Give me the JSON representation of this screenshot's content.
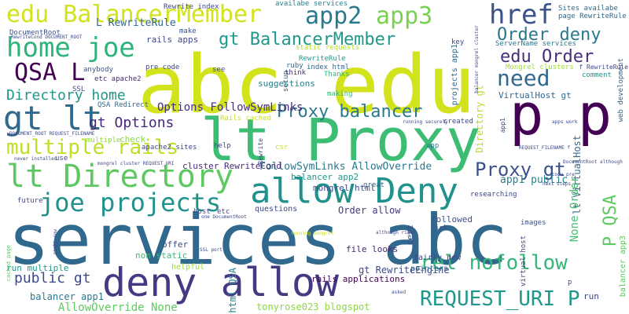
{
  "words": [
    {
      "text": "services abc",
      "color": "#31688e"
    },
    {
      "text": "abc edu",
      "color": "#d2e21b"
    },
    {
      "text": "lt Proxy",
      "color": "#3dbc74"
    },
    {
      "text": "p p",
      "color": "#440154"
    },
    {
      "text": "deny allow",
      "color": "#443983"
    },
    {
      "text": "allow Deny",
      "color": "#21918c"
    },
    {
      "text": "lt Directory",
      "color": "#5ec962"
    },
    {
      "text": "edu BalancerMember",
      "color": "#d2e21b"
    },
    {
      "text": "app2",
      "color": "#2a788e"
    },
    {
      "text": "app3",
      "color": "#7ad151"
    },
    {
      "text": "href",
      "color": "#3b528b"
    },
    {
      "text": "home joe",
      "color": "#2fb47c"
    },
    {
      "text": "QSA L",
      "color": "#440154"
    },
    {
      "text": "gt lt",
      "color": "#31688e"
    },
    {
      "text": "joe projects",
      "color": "#21918c"
    },
    {
      "text": "multiple rails",
      "color": "#bddf26"
    },
    {
      "text": "gt BalancerMember",
      "color": "#1f988b"
    },
    {
      "text": "Order deny",
      "color": "#2a788e"
    },
    {
      "text": "edu Order",
      "color": "#472d7b"
    },
    {
      "text": "need",
      "color": "#31688e"
    },
    {
      "text": "Proxy balancer",
      "color": "#2a788e"
    },
    {
      "text": "Proxy gt",
      "color": "#3b528b"
    },
    {
      "text": "rel nofollow",
      "color": "#35b779"
    },
    {
      "text": "REQUEST_URI P",
      "color": "#1f988b"
    },
    {
      "text": "P QSA",
      "color": "#5ec962"
    },
    {
      "text": "Directory home",
      "color": "#1f988b"
    },
    {
      "text": "gt Options",
      "color": "#482878"
    },
    {
      "text": "Options FollowSymLinks",
      "color": "#472d7b"
    },
    {
      "text": "public gt",
      "color": "#3e4989"
    },
    {
      "text": "FollowSymLinks AllowOverride",
      "color": "#2a788e"
    },
    {
      "text": "L RewriteRule",
      "color": "#31688e"
    },
    {
      "text": "app1 public",
      "color": "#26828e"
    },
    {
      "text": "Rewrite index",
      "color": "#3e4989"
    },
    {
      "text": "availabe services",
      "color": "#26828e"
    },
    {
      "text": "Sites availabe",
      "color": "#31688e"
    },
    {
      "text": "page RewriteRule",
      "color": "#31688e"
    },
    {
      "text": "DocumentRoot",
      "color": "#3b528b"
    },
    {
      "text": "rails apps",
      "color": "#3e4989"
    },
    {
      "text": "static requests",
      "color": "#b5de2b"
    },
    {
      "text": "ServerName services",
      "color": "#2a788e"
    },
    {
      "text": "Directory gt",
      "color": "#b5de2b"
    },
    {
      "text": "RewriteRule",
      "color": "#1f988b"
    },
    {
      "text": "ruby",
      "color": "#31688e"
    },
    {
      "text": "anybody",
      "color": "#3b528b"
    },
    {
      "text": "Mongrel clusters",
      "color": "#a0da39"
    },
    {
      "text": "VirtualHost gt",
      "color": "#31688e"
    },
    {
      "text": "suggestions",
      "color": "#26828e"
    },
    {
      "text": "index html",
      "color": "#31688e"
    },
    {
      "text": "Thanks",
      "color": "#35b779"
    },
    {
      "text": "think",
      "color": "#472d7b"
    },
    {
      "text": "etc apache2",
      "color": "#482878"
    },
    {
      "text": "pre code",
      "color": "#3e4989"
    },
    {
      "text": "making",
      "color": "#35b779"
    },
    {
      "text": "comment",
      "color": "#21918c"
    },
    {
      "text": "QSA Redirect",
      "color": "#31688e"
    },
    {
      "text": "created",
      "color": "#3e4989"
    },
    {
      "text": "check",
      "color": "#8fd744"
    },
    {
      "text": "multiple",
      "color": "#90d743"
    },
    {
      "text": "apache2 sites",
      "color": "#3e4989"
    },
    {
      "text": "cluster RewriteCond",
      "color": "#482878"
    },
    {
      "text": "balancer app2",
      "color": "#1f988b"
    },
    {
      "text": "mongrel html",
      "color": "#3e4989"
    },
    {
      "text": "Order allow",
      "color": "#443983"
    },
    {
      "text": "lt VirtualHost",
      "color": "#31688e"
    },
    {
      "text": "None Order",
      "color": "#44bf70"
    },
    {
      "text": "AllowOverride None",
      "color": "#5ec962"
    },
    {
      "text": "balancer app1",
      "color": "#2a788e"
    },
    {
      "text": "tonyrose023 blogspot",
      "color": "#8fd744"
    },
    {
      "text": "gt RewriteEngine",
      "color": "#3e4989"
    },
    {
      "text": "rails applications",
      "color": "#440154"
    },
    {
      "text": "html QSA",
      "color": "#26828e"
    },
    {
      "text": "file looks",
      "color": "#482878"
    },
    {
      "text": "fairly new",
      "color": "#3e4989"
    },
    {
      "text": "pointers",
      "color": "#31688e"
    },
    {
      "text": "run multiple",
      "color": "#1f988b"
    },
    {
      "text": "non static",
      "color": "#3dbc74"
    },
    {
      "text": "offer",
      "color": "#3e4989"
    },
    {
      "text": "helpful",
      "color": "#a0da39"
    },
    {
      "text": "questions",
      "color": "#3e4989"
    },
    {
      "text": "future",
      "color": "#3e4989"
    },
    {
      "text": "followed",
      "color": "#3b528b"
    },
    {
      "text": "link",
      "color": "#3b528b"
    },
    {
      "text": "cert",
      "color": "#3e4989"
    },
    {
      "text": "images",
      "color": "#3b528b"
    },
    {
      "text": "great",
      "color": "#31688e"
    },
    {
      "text": "researching",
      "color": "#3e4989"
    },
    {
      "text": "host",
      "color": "#3e4989"
    },
    {
      "text": "etc",
      "color": "#3e4989"
    },
    {
      "text": "help",
      "color": "#3e4989"
    },
    {
      "text": "csr",
      "color": "#c2df23"
    },
    {
      "text": "app",
      "color": "#2a788e"
    },
    {
      "text": "use",
      "color": "#3e4989"
    },
    {
      "text": "see",
      "color": "#3e4989"
    },
    {
      "text": "make",
      "color": "#3b528b"
    },
    {
      "text": "SSL",
      "color": "#3e4989"
    },
    {
      "text": "key",
      "color": "#3e4989"
    },
    {
      "text": "Rails cached",
      "color": "#c8e020"
    },
    {
      "text": "setup",
      "color": "#31688e"
    },
    {
      "text": "projects app1",
      "color": "#31688e"
    },
    {
      "text": "web development",
      "color": "#31688e"
    },
    {
      "text": "virtual host",
      "color": "#3e4989"
    },
    {
      "text": "balancer app3",
      "color": "#5ec962"
    },
    {
      "text": "run",
      "color": "#3e4989"
    },
    {
      "text": "p",
      "color": "#3e4989"
    },
    {
      "text": "DOCUMENT_ROOT REQUEST_FILENAME",
      "color": "#3e4989"
    },
    {
      "text": "RewriteCond DOCUMENT_ROOT",
      "color": "#3e4989"
    },
    {
      "text": "never installed",
      "color": "#3e4989"
    },
    {
      "text": "mongrel cluster REQUEST_URI",
      "color": "#3e4989"
    },
    {
      "text": "cached page",
      "color": "#5ec962"
    },
    {
      "text": "right now",
      "color": "#3e4989"
    },
    {
      "text": "one DocumentRoot",
      "color": "#3e4989"
    },
    {
      "text": "SSL port",
      "color": "#3e4989"
    },
    {
      "text": "REQUEST_FILENAME f",
      "color": "#3e4989"
    },
    {
      "text": "code pre",
      "color": "#3e4989"
    },
    {
      "text": "next steps",
      "color": "#3e4989"
    },
    {
      "text": "DocumentRoot although",
      "color": "#3e4989"
    },
    {
      "text": "running mongrel",
      "color": "#c8e020"
    },
    {
      "text": "although right",
      "color": "#3e4989"
    },
    {
      "text": "running securely",
      "color": "#3e4989"
    },
    {
      "text": "apps work",
      "color": "#3e4989"
    },
    {
      "text": "balancer mongrel cluster",
      "color": "#3e4989"
    },
    {
      "text": "asked",
      "color": "#3e4989"
    },
    {
      "text": "Rewrite",
      "color": "#3e4989"
    },
    {
      "text": "f RewriteRule",
      "color": "#3e4989"
    },
    {
      "text": "app1",
      "color": "#3e4989"
    }
  ]
}
